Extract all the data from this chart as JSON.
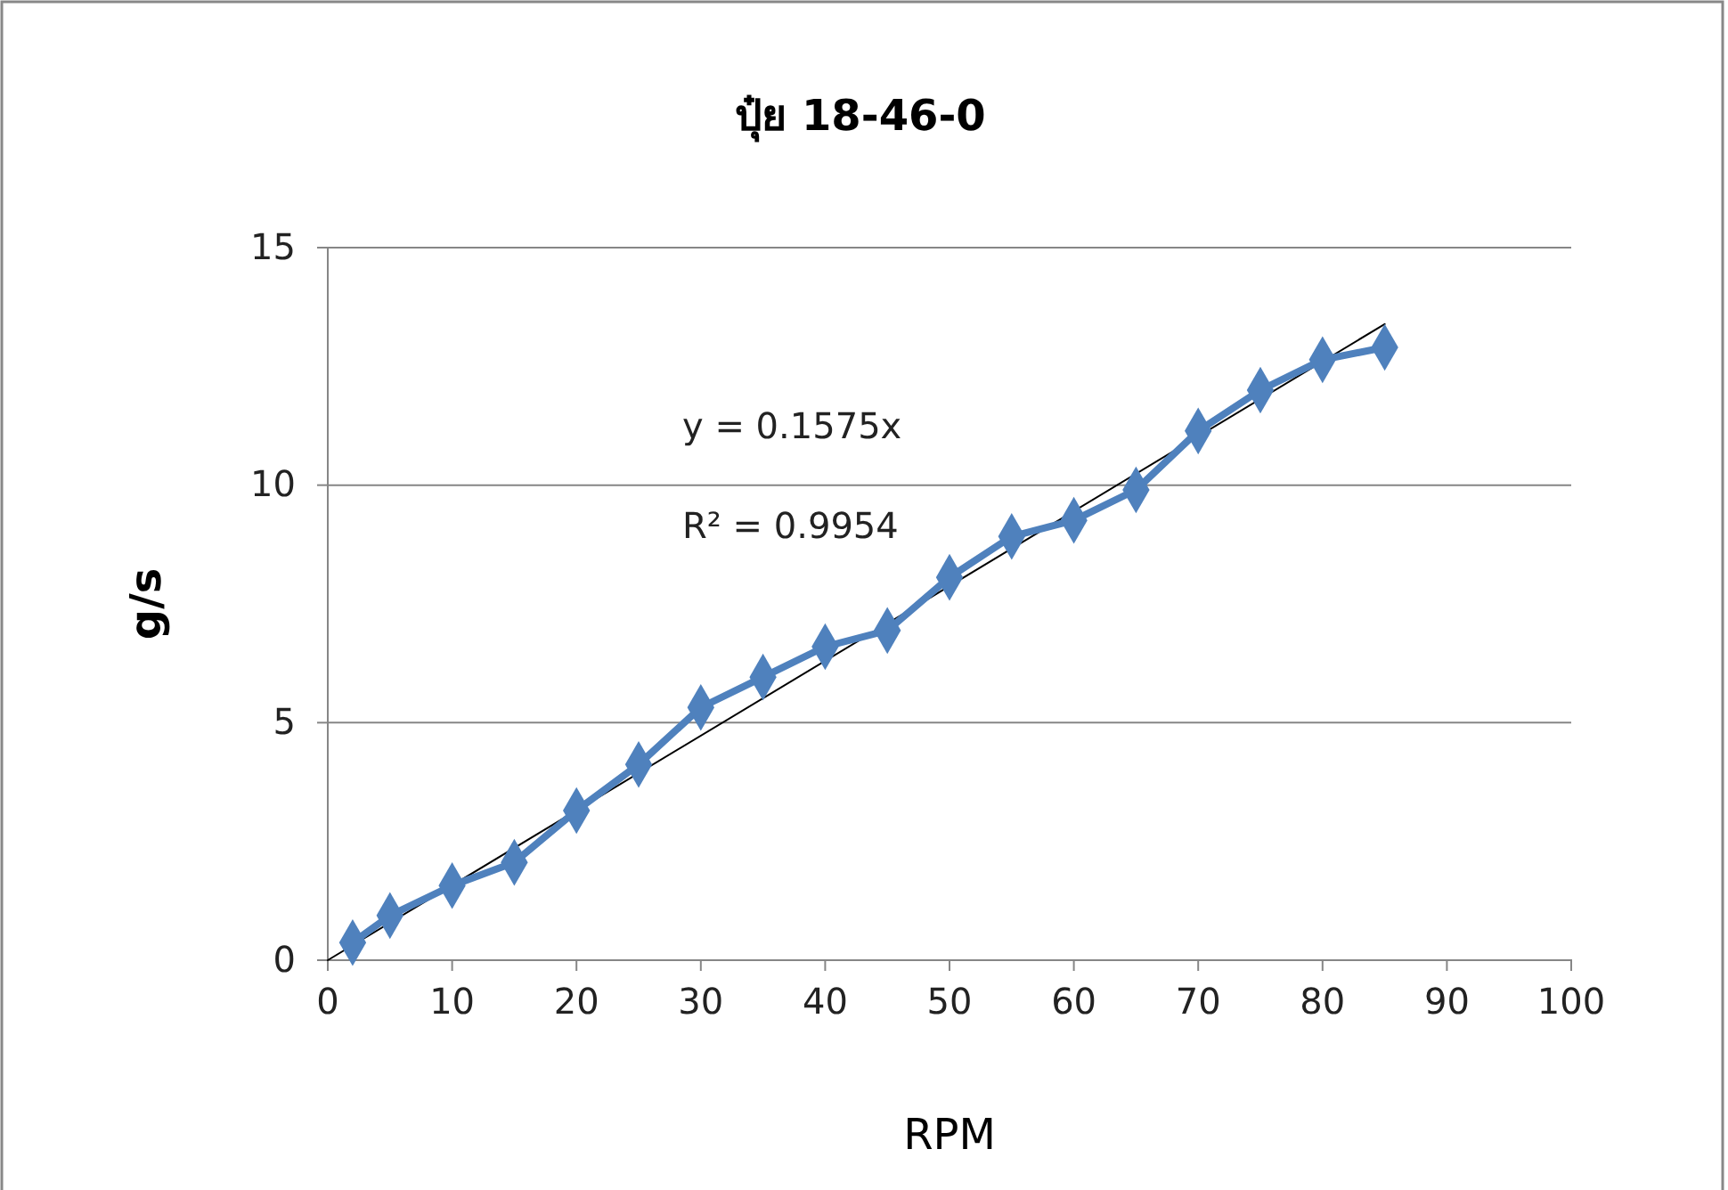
{
  "chart_data": {
    "type": "line",
    "title": "ปุ๋ย 18-46-0",
    "xlabel": "RPM",
    "ylabel": "g/s",
    "xlim": [
      0,
      100
    ],
    "xticks": [
      0,
      10,
      20,
      30,
      40,
      50,
      60,
      70,
      80,
      90,
      100
    ],
    "ylim": [
      0,
      15
    ],
    "yticks": [
      0,
      5,
      10,
      15
    ],
    "grid": "y",
    "annotations": [
      "y = 0.1575x",
      "R² = 0.9954"
    ],
    "series": [
      {
        "color": "#4f81bd",
        "marker": "diamond",
        "line_style": "solid",
        "x": [
          2,
          5,
          10,
          15,
          20,
          25,
          30,
          35,
          40,
          45,
          50,
          55,
          60,
          65,
          70,
          75,
          80,
          85
        ],
        "values": [
          0.37,
          0.94,
          1.57,
          2.06,
          3.15,
          4.12,
          5.32,
          5.96,
          6.6,
          6.94,
          8.06,
          8.92,
          9.26,
          9.9,
          11.14,
          12.0,
          12.64,
          12.9
        ]
      },
      {
        "type": "line",
        "color": "#000000",
        "marker": "none",
        "line_style": "solid",
        "x": [
          0,
          85
        ],
        "values": [
          0,
          13.39
        ]
      }
    ]
  }
}
